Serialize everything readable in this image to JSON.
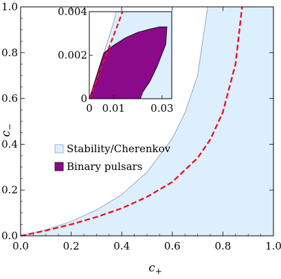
{
  "chart_data": [
    {
      "type": "area",
      "xlabel": "c",
      "xlabel_subscript": "+",
      "ylabel": "c",
      "ylabel_subscript": "−",
      "xlim": [
        0,
        1
      ],
      "ylim": [
        0,
        1
      ],
      "xticks": [
        0.0,
        0.2,
        0.4,
        0.6,
        0.8,
        1.0
      ],
      "xtick_labels": [
        "0.0",
        "0.2",
        "0.4",
        "0.6",
        "0.8",
        "1.0"
      ],
      "yticks": [
        0.0,
        0.2,
        0.4,
        0.6,
        0.8,
        1.0
      ],
      "ytick_labels": [
        "0.0",
        "0.2",
        "0.4",
        "0.6",
        "0.8",
        "1.0"
      ],
      "legend_position": "left",
      "legend": [
        {
          "label": "Stability/Cherenkov",
          "color": "#ddeefc",
          "border": "#9ab4cc"
        },
        {
          "label": "Binary pulsars",
          "color": "#8a0a8a",
          "border": "#222222"
        }
      ],
      "series": [
        {
          "role": "stability-region-boundary",
          "color": "#9aa8b8",
          "fill": "#ddeefc",
          "x": [
            0,
            0.1,
            0.2,
            0.3,
            0.4,
            0.5,
            0.6,
            0.65,
            0.7,
            0.74
          ],
          "y": [
            0,
            0.026,
            0.063,
            0.113,
            0.18,
            0.278,
            0.425,
            0.537,
            0.7,
            1.0
          ]
        },
        {
          "role": "dashed-curve",
          "color": "#e8141e",
          "dashed": true,
          "x": [
            0,
            0.1,
            0.2,
            0.3,
            0.4,
            0.5,
            0.6,
            0.7,
            0.75,
            0.8,
            0.85,
            0.876
          ],
          "y": [
            0,
            0.023,
            0.05,
            0.082,
            0.12,
            0.17,
            0.235,
            0.34,
            0.42,
            0.54,
            0.75,
            1.0
          ]
        }
      ]
    },
    {
      "type": "area",
      "role": "inset",
      "xlim": [
        0,
        0.034
      ],
      "ylim": [
        0,
        0.004
      ],
      "xticks": [
        0,
        0.01,
        0.03
      ],
      "xtick_labels": [
        "0",
        "0.01",
        "0.03"
      ],
      "yticks": [
        0,
        0.002,
        0.004
      ],
      "ytick_labels": [
        "0",
        "0.002",
        "0.004"
      ],
      "stability_boundary": {
        "x": [
          0,
          0.002,
          0.004,
          0.006,
          0.008,
          0.01,
          0.0111
        ],
        "y": [
          0,
          0.0007,
          0.0014,
          0.0021,
          0.0028,
          0.0035,
          0.004
        ]
      },
      "dashed_curve": {
        "x": [
          0,
          0.002,
          0.004,
          0.006,
          0.008,
          0.01,
          0.012,
          0.0137
        ],
        "y": [
          0,
          0.00058,
          0.00116,
          0.00173,
          0.00231,
          0.0029,
          0.00348,
          0.004
        ]
      },
      "binary_pulsars_region": {
        "x": [
          0,
          0.006,
          0.01,
          0.015,
          0.02,
          0.025,
          0.029,
          0.032,
          0.0315,
          0.028,
          0.025,
          0.022,
          0.021,
          0.019,
          0
        ],
        "y": [
          0,
          0.0021,
          0.00245,
          0.0028,
          0.00305,
          0.0032,
          0.0033,
          0.0033,
          0.0025,
          0.0015,
          0.0008,
          0.0003,
          0,
          0,
          0
        ]
      }
    }
  ]
}
